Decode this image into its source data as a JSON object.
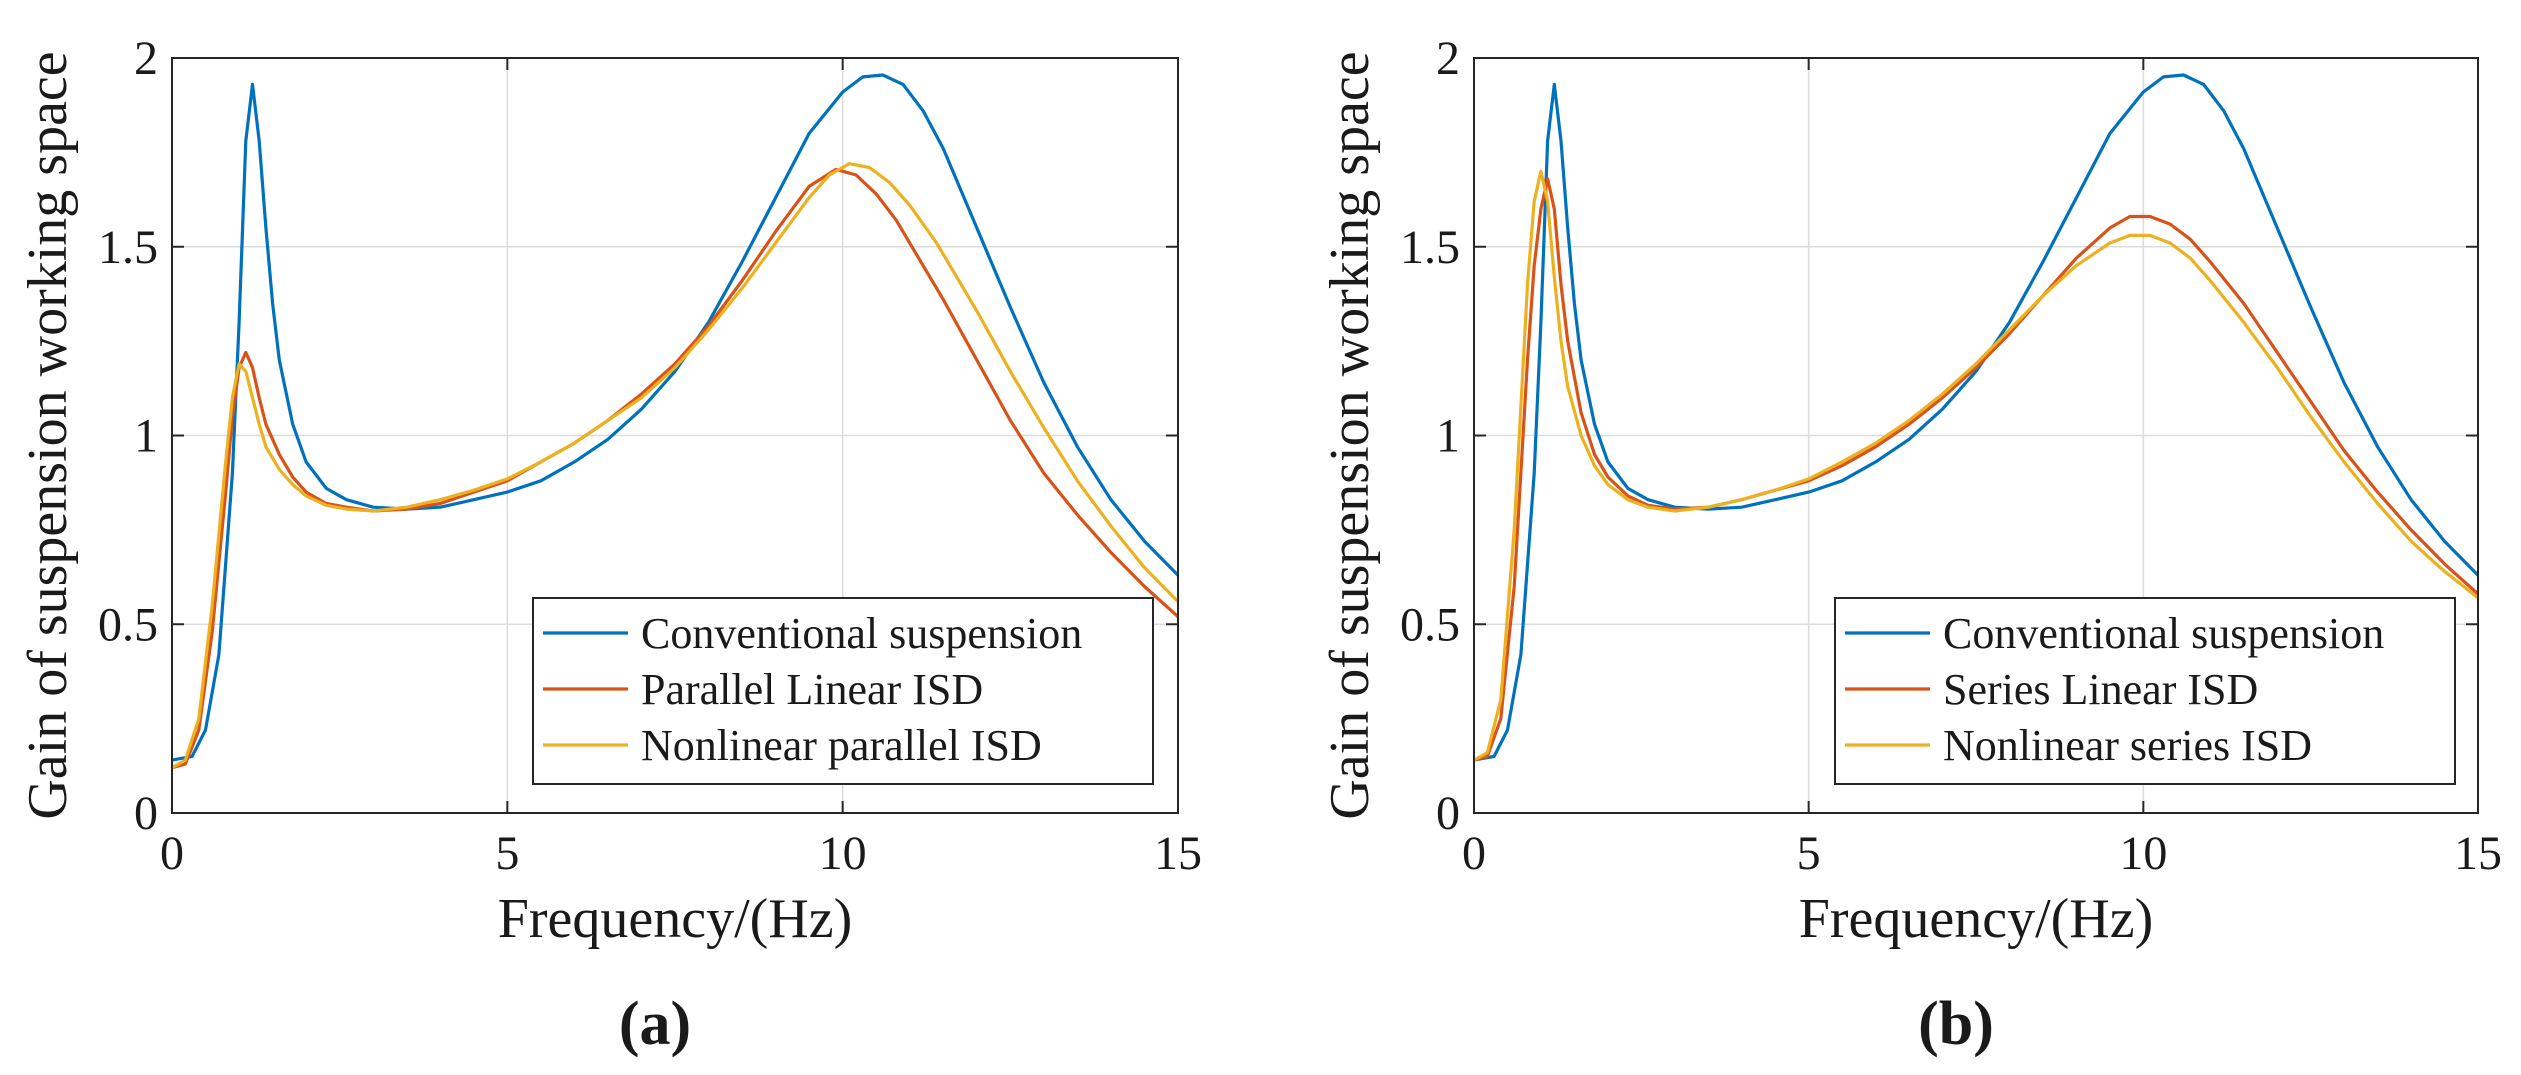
{
  "colors": {
    "conventional": "#0072BD",
    "linear": "#D95319",
    "nonlinear": "#EDB120",
    "grid": "#dcdcdc",
    "axis": "#262626"
  },
  "chart_data": [
    {
      "type": "line",
      "panel_label": "(a)",
      "xlabel": "Frequency/(Hz)",
      "ylabel": "Gain of suspension working space",
      "xlim": [
        0,
        15
      ],
      "ylim": [
        0,
        2
      ],
      "xticks": [
        0,
        5,
        10,
        15
      ],
      "xtick_labels": [
        "0",
        "5",
        "10",
        "15"
      ],
      "yticks": [
        0,
        0.5,
        1,
        1.5,
        2
      ],
      "ytick_labels": [
        "0",
        "0.5",
        "1",
        "1.5",
        "2"
      ],
      "grid": true,
      "legend_position": "bottom-right",
      "series": [
        {
          "name": "Conventional suspension",
          "color_key": "conventional",
          "x": [
            0,
            0.3,
            0.5,
            0.7,
            0.9,
            1.0,
            1.1,
            1.2,
            1.3,
            1.4,
            1.5,
            1.6,
            1.8,
            2.0,
            2.3,
            2.6,
            3.0,
            3.5,
            4.0,
            4.5,
            5.0,
            5.5,
            6.0,
            6.5,
            7.0,
            7.5,
            8.0,
            8.5,
            9.0,
            9.5,
            10.0,
            10.3,
            10.6,
            10.9,
            11.2,
            11.5,
            12.0,
            12.5,
            13.0,
            13.5,
            14.0,
            14.5,
            15.0
          ],
          "y": [
            0.14,
            0.15,
            0.22,
            0.42,
            0.9,
            1.3,
            1.78,
            1.93,
            1.78,
            1.55,
            1.35,
            1.2,
            1.03,
            0.93,
            0.86,
            0.83,
            0.81,
            0.805,
            0.81,
            0.83,
            0.85,
            0.88,
            0.93,
            0.99,
            1.07,
            1.17,
            1.3,
            1.46,
            1.63,
            1.8,
            1.91,
            1.95,
            1.955,
            1.93,
            1.86,
            1.76,
            1.55,
            1.34,
            1.14,
            0.97,
            0.83,
            0.72,
            0.63
          ]
        },
        {
          "name": "Parallel Linear ISD",
          "color_key": "linear",
          "x": [
            0,
            0.2,
            0.4,
            0.6,
            0.8,
            0.9,
            1.0,
            1.1,
            1.2,
            1.3,
            1.4,
            1.6,
            1.8,
            2.0,
            2.3,
            2.6,
            3.0,
            3.5,
            4.0,
            4.5,
            5.0,
            5.5,
            6.0,
            6.5,
            7.0,
            7.5,
            8.0,
            8.5,
            9.0,
            9.5,
            9.9,
            10.2,
            10.5,
            10.8,
            11.1,
            11.5,
            12.0,
            12.5,
            13.0,
            13.5,
            14.0,
            14.5,
            15.0
          ],
          "y": [
            0.12,
            0.13,
            0.22,
            0.48,
            0.85,
            1.05,
            1.18,
            1.22,
            1.18,
            1.1,
            1.03,
            0.95,
            0.89,
            0.85,
            0.82,
            0.81,
            0.8,
            0.805,
            0.82,
            0.85,
            0.88,
            0.93,
            0.98,
            1.04,
            1.11,
            1.19,
            1.29,
            1.41,
            1.54,
            1.66,
            1.705,
            1.69,
            1.64,
            1.57,
            1.48,
            1.36,
            1.2,
            1.04,
            0.9,
            0.79,
            0.69,
            0.6,
            0.52
          ]
        },
        {
          "name": "Nonlinear parallel ISD",
          "color_key": "nonlinear",
          "x": [
            0,
            0.2,
            0.4,
            0.6,
            0.8,
            0.9,
            1.0,
            1.1,
            1.2,
            1.3,
            1.4,
            1.6,
            1.8,
            2.0,
            2.3,
            2.6,
            3.0,
            3.5,
            4.0,
            4.5,
            5.0,
            5.5,
            6.0,
            6.5,
            7.0,
            7.5,
            8.0,
            8.5,
            9.0,
            9.5,
            9.8,
            10.1,
            10.4,
            10.7,
            11.0,
            11.4,
            12.0,
            12.5,
            13.0,
            13.5,
            14.0,
            14.5,
            15.0
          ],
          "y": [
            0.12,
            0.14,
            0.25,
            0.55,
            0.93,
            1.1,
            1.19,
            1.17,
            1.1,
            1.03,
            0.97,
            0.91,
            0.87,
            0.84,
            0.815,
            0.805,
            0.8,
            0.81,
            0.83,
            0.855,
            0.885,
            0.93,
            0.98,
            1.04,
            1.1,
            1.18,
            1.28,
            1.39,
            1.51,
            1.63,
            1.69,
            1.72,
            1.71,
            1.67,
            1.61,
            1.51,
            1.33,
            1.17,
            1.02,
            0.88,
            0.76,
            0.65,
            0.56
          ]
        }
      ]
    },
    {
      "type": "line",
      "panel_label": "(b)",
      "xlabel": "Frequency/(Hz)",
      "ylabel": "Gain of suspension working space",
      "xlim": [
        0,
        15
      ],
      "ylim": [
        0,
        2
      ],
      "xticks": [
        0,
        5,
        10,
        15
      ],
      "xtick_labels": [
        "0",
        "5",
        "10",
        "15"
      ],
      "yticks": [
        0,
        0.5,
        1,
        1.5,
        2
      ],
      "ytick_labels": [
        "0",
        "0.5",
        "1",
        "1.5",
        "2"
      ],
      "grid": true,
      "legend_position": "bottom-right",
      "series": [
        {
          "name": "Conventional suspension",
          "color_key": "conventional",
          "x": [
            0,
            0.3,
            0.5,
            0.7,
            0.9,
            1.0,
            1.1,
            1.2,
            1.3,
            1.4,
            1.5,
            1.6,
            1.8,
            2.0,
            2.3,
            2.6,
            3.0,
            3.5,
            4.0,
            4.5,
            5.0,
            5.5,
            6.0,
            6.5,
            7.0,
            7.5,
            8.0,
            8.5,
            9.0,
            9.5,
            10.0,
            10.3,
            10.6,
            10.9,
            11.2,
            11.5,
            12.0,
            12.5,
            13.0,
            13.5,
            14.0,
            14.5,
            15.0
          ],
          "y": [
            0.14,
            0.15,
            0.22,
            0.42,
            0.9,
            1.3,
            1.78,
            1.93,
            1.78,
            1.55,
            1.35,
            1.2,
            1.03,
            0.93,
            0.86,
            0.83,
            0.81,
            0.805,
            0.81,
            0.83,
            0.85,
            0.88,
            0.93,
            0.99,
            1.07,
            1.17,
            1.3,
            1.46,
            1.63,
            1.8,
            1.91,
            1.95,
            1.955,
            1.93,
            1.86,
            1.76,
            1.55,
            1.34,
            1.14,
            0.97,
            0.83,
            0.72,
            0.63
          ]
        },
        {
          "name": "Series Linear ISD",
          "color_key": "linear",
          "x": [
            0,
            0.2,
            0.4,
            0.6,
            0.8,
            0.9,
            1.0,
            1.1,
            1.2,
            1.3,
            1.4,
            1.6,
            1.8,
            2.0,
            2.3,
            2.6,
            3.0,
            3.5,
            4.0,
            4.5,
            5.0,
            5.5,
            6.0,
            6.5,
            7.0,
            7.5,
            8.0,
            8.5,
            9.0,
            9.5,
            9.8,
            10.1,
            10.4,
            10.7,
            11.0,
            11.5,
            12.0,
            12.5,
            13.0,
            13.5,
            14.0,
            14.5,
            15.0
          ],
          "y": [
            0.14,
            0.15,
            0.25,
            0.6,
            1.2,
            1.45,
            1.6,
            1.68,
            1.6,
            1.4,
            1.25,
            1.06,
            0.95,
            0.89,
            0.84,
            0.815,
            0.805,
            0.81,
            0.83,
            0.855,
            0.88,
            0.92,
            0.97,
            1.03,
            1.1,
            1.18,
            1.27,
            1.37,
            1.47,
            1.55,
            1.58,
            1.58,
            1.56,
            1.52,
            1.46,
            1.35,
            1.22,
            1.09,
            0.96,
            0.85,
            0.75,
            0.66,
            0.58
          ]
        },
        {
          "name": "Nonlinear series ISD",
          "color_key": "nonlinear",
          "x": [
            0,
            0.2,
            0.4,
            0.6,
            0.8,
            0.9,
            1.0,
            1.1,
            1.2,
            1.3,
            1.4,
            1.6,
            1.8,
            2.0,
            2.3,
            2.6,
            3.0,
            3.5,
            4.0,
            4.5,
            5.0,
            5.5,
            6.0,
            6.5,
            7.0,
            7.5,
            8.0,
            8.5,
            9.0,
            9.5,
            9.8,
            10.1,
            10.4,
            10.7,
            11.0,
            11.5,
            12.0,
            12.5,
            13.0,
            13.5,
            14.0,
            14.5,
            15.0
          ],
          "y": [
            0.14,
            0.16,
            0.3,
            0.75,
            1.4,
            1.62,
            1.7,
            1.62,
            1.42,
            1.25,
            1.13,
            1.0,
            0.92,
            0.87,
            0.83,
            0.81,
            0.8,
            0.81,
            0.83,
            0.855,
            0.885,
            0.93,
            0.98,
            1.04,
            1.11,
            1.19,
            1.28,
            1.37,
            1.45,
            1.51,
            1.53,
            1.53,
            1.51,
            1.47,
            1.41,
            1.3,
            1.18,
            1.05,
            0.93,
            0.82,
            0.72,
            0.64,
            0.57
          ]
        }
      ]
    }
  ]
}
